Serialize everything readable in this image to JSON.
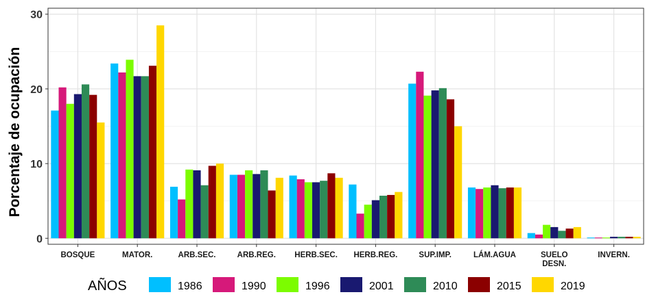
{
  "chart_data": {
    "type": "bar",
    "title": "",
    "xlabel": "",
    "ylabel": "Porcentaje de ocupación",
    "ylim": [
      -0.8,
      30.8
    ],
    "yticks": [
      0,
      10,
      20,
      30
    ],
    "grid": true,
    "legend_position": "bottom",
    "legend_title": "AÑOS",
    "categories": [
      [
        "BOSQUE"
      ],
      [
        "MATOR."
      ],
      [
        "ARB.SEC."
      ],
      [
        "ARB.REG."
      ],
      [
        "HERB.SEC."
      ],
      [
        "HERB.REG."
      ],
      [
        "SUP.IMP."
      ],
      [
        "LÁM.AGUA"
      ],
      [
        "SUELO",
        "DESN."
      ],
      [
        "INVERN."
      ]
    ],
    "series": [
      {
        "name": "1986",
        "color": "#00BFFF",
        "values": [
          17.1,
          23.4,
          6.9,
          8.5,
          8.4,
          7.2,
          20.7,
          6.8,
          0.7,
          0.1
        ]
      },
      {
        "name": "1990",
        "color": "#D6197A",
        "values": [
          20.2,
          22.2,
          5.2,
          8.5,
          7.9,
          3.3,
          22.3,
          6.6,
          0.5,
          0.1
        ]
      },
      {
        "name": "1996",
        "color": "#7CFC00",
        "values": [
          18.0,
          23.9,
          9.2,
          9.1,
          7.5,
          4.5,
          19.1,
          6.8,
          1.8,
          0.1
        ]
      },
      {
        "name": "2001",
        "color": "#191970",
        "values": [
          19.3,
          21.7,
          9.1,
          8.6,
          7.5,
          5.1,
          19.8,
          7.1,
          1.5,
          0.2
        ]
      },
      {
        "name": "2010",
        "color": "#2E8B57",
        "values": [
          20.6,
          21.7,
          7.1,
          9.1,
          7.7,
          5.7,
          20.1,
          6.7,
          1.0,
          0.2
        ]
      },
      {
        "name": "2015",
        "color": "#8B0000",
        "values": [
          19.2,
          23.1,
          9.7,
          6.4,
          8.7,
          5.8,
          18.6,
          6.8,
          1.3,
          0.2
        ]
      },
      {
        "name": "2019",
        "color": "#FFD700",
        "values": [
          15.5,
          28.5,
          10.0,
          8.1,
          8.1,
          6.2,
          15.0,
          6.8,
          1.5,
          0.2
        ]
      }
    ]
  }
}
